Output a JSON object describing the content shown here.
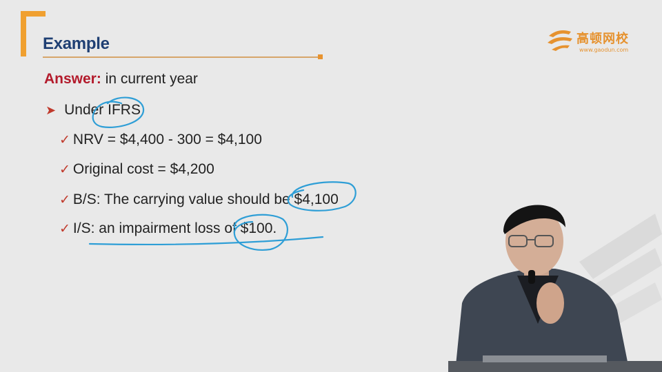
{
  "slide": {
    "title": "Example",
    "logo": {
      "cn_name": "高顿网校",
      "url": "www.gaodun.com"
    },
    "answer": {
      "label": "Answer:",
      "text": " in current year"
    },
    "bullet": {
      "text": "Under IFRS"
    },
    "checks": [
      {
        "text": "NRV = $4,400 - 300 = $4,100"
      },
      {
        "text": "Original cost = $4,200"
      },
      {
        "text": "B/S: The carrying value should be $4,100"
      },
      {
        "text": "I/S: an impairment loss of $100."
      }
    ]
  },
  "icons": {
    "bullet": "arrowhead-right-icon",
    "check": "checkmark-icon",
    "logo": "gaodun-logo-icon"
  },
  "colors": {
    "title": "#1f3f73",
    "accent_orange": "#f0a030",
    "answer_label": "#b31b2c",
    "bullet_red": "#c0392b",
    "pen_blue": "#2e9ed6",
    "background": "#e9e9e9"
  }
}
